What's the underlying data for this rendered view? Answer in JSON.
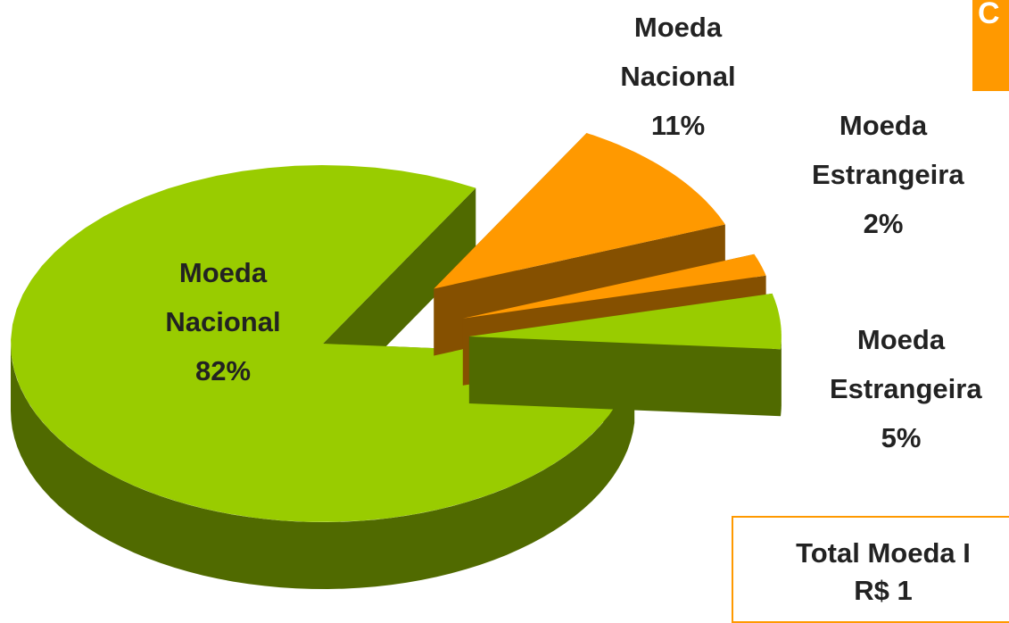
{
  "chart_data": {
    "type": "pie",
    "categories": [
      "Moeda Nacional",
      "Moeda Nacional",
      "Moeda Estrangeira",
      "Moeda Estrangeira"
    ],
    "values": [
      82,
      11,
      2,
      5
    ],
    "value_labels": [
      "82%",
      "11%",
      "2%",
      "5%"
    ],
    "colors": [
      "#99cc00",
      "#ff9900",
      "#ff9900",
      "#99cc00"
    ],
    "exploded": [
      false,
      true,
      true,
      true
    ],
    "corner_text": "C",
    "total_box": [
      "Total Moeda I",
      "R$ 1"
    ]
  }
}
